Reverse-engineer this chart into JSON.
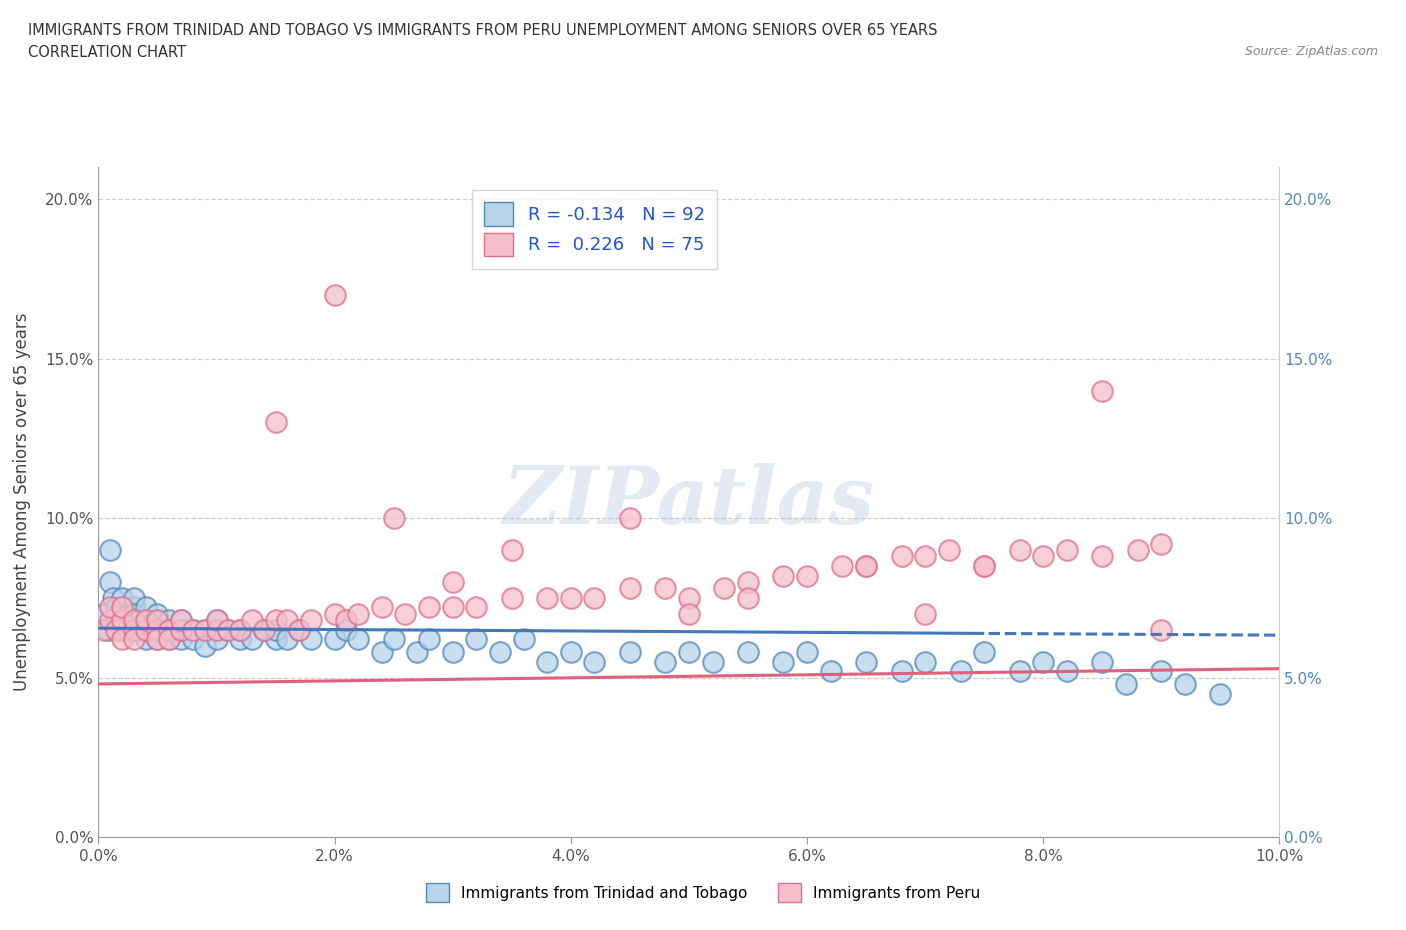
{
  "title_line1": "IMMIGRANTS FROM TRINIDAD AND TOBAGO VS IMMIGRANTS FROM PERU UNEMPLOYMENT AMONG SENIORS OVER 65 YEARS",
  "title_line2": "CORRELATION CHART",
  "source_text": "Source: ZipAtlas.com",
  "ylabel": "Unemployment Among Seniors over 65 years",
  "xlim": [
    0.0,
    0.1
  ],
  "ylim": [
    0.0,
    0.21
  ],
  "xticks": [
    0.0,
    0.02,
    0.04,
    0.06,
    0.08,
    0.1
  ],
  "xtick_labels": [
    "0.0%",
    "2.0%",
    "4.0%",
    "6.0%",
    "8.0%",
    "10.0%"
  ],
  "yticks": [
    0.0,
    0.05,
    0.1,
    0.15,
    0.2
  ],
  "ytick_labels": [
    "0.0%",
    "5.0%",
    "10.0%",
    "15.0%",
    "20.0%"
  ],
  "color_blue_fill": "#b8d4ea",
  "color_blue_edge": "#5588bb",
  "color_pink_fill": "#f5bfcc",
  "color_pink_edge": "#e07090",
  "color_blue_line": "#4477bb",
  "color_pink_line": "#e06080",
  "tt_x": [
    0.0005,
    0.0008,
    0.001,
    0.001,
    0.0012,
    0.0015,
    0.0015,
    0.002,
    0.002,
    0.002,
    0.002,
    0.0025,
    0.0025,
    0.003,
    0.003,
    0.003,
    0.003,
    0.003,
    0.003,
    0.0035,
    0.0035,
    0.004,
    0.004,
    0.004,
    0.004,
    0.004,
    0.005,
    0.005,
    0.005,
    0.005,
    0.005,
    0.006,
    0.006,
    0.006,
    0.006,
    0.007,
    0.007,
    0.007,
    0.007,
    0.008,
    0.008,
    0.009,
    0.009,
    0.01,
    0.01,
    0.01,
    0.011,
    0.012,
    0.012,
    0.013,
    0.014,
    0.015,
    0.015,
    0.016,
    0.017,
    0.018,
    0.02,
    0.021,
    0.022,
    0.024,
    0.025,
    0.027,
    0.028,
    0.03,
    0.032,
    0.034,
    0.036,
    0.038,
    0.04,
    0.042,
    0.045,
    0.048,
    0.05,
    0.052,
    0.055,
    0.058,
    0.06,
    0.062,
    0.065,
    0.068,
    0.07,
    0.073,
    0.075,
    0.078,
    0.08,
    0.082,
    0.085,
    0.087,
    0.09,
    0.092,
    0.095
  ],
  "tt_y": [
    0.07,
    0.065,
    0.08,
    0.09,
    0.075,
    0.068,
    0.072,
    0.065,
    0.068,
    0.072,
    0.075,
    0.065,
    0.07,
    0.065,
    0.068,
    0.072,
    0.075,
    0.065,
    0.07,
    0.065,
    0.068,
    0.065,
    0.068,
    0.072,
    0.062,
    0.065,
    0.065,
    0.062,
    0.065,
    0.068,
    0.07,
    0.065,
    0.062,
    0.065,
    0.068,
    0.065,
    0.062,
    0.065,
    0.068,
    0.065,
    0.062,
    0.065,
    0.06,
    0.065,
    0.062,
    0.068,
    0.065,
    0.062,
    0.065,
    0.062,
    0.065,
    0.062,
    0.065,
    0.062,
    0.065,
    0.062,
    0.062,
    0.065,
    0.062,
    0.058,
    0.062,
    0.058,
    0.062,
    0.058,
    0.062,
    0.058,
    0.062,
    0.055,
    0.058,
    0.055,
    0.058,
    0.055,
    0.058,
    0.055,
    0.058,
    0.055,
    0.058,
    0.052,
    0.055,
    0.052,
    0.055,
    0.052,
    0.058,
    0.052,
    0.055,
    0.052,
    0.055,
    0.048,
    0.052,
    0.048,
    0.045
  ],
  "peru_x": [
    0.0005,
    0.001,
    0.001,
    0.0015,
    0.002,
    0.002,
    0.002,
    0.003,
    0.003,
    0.003,
    0.004,
    0.004,
    0.005,
    0.005,
    0.005,
    0.006,
    0.006,
    0.007,
    0.007,
    0.008,
    0.009,
    0.01,
    0.01,
    0.011,
    0.012,
    0.013,
    0.014,
    0.015,
    0.016,
    0.017,
    0.018,
    0.02,
    0.021,
    0.022,
    0.024,
    0.026,
    0.028,
    0.03,
    0.032,
    0.035,
    0.038,
    0.04,
    0.042,
    0.045,
    0.048,
    0.05,
    0.053,
    0.055,
    0.058,
    0.06,
    0.063,
    0.065,
    0.068,
    0.07,
    0.072,
    0.075,
    0.078,
    0.08,
    0.082,
    0.085,
    0.088,
    0.09,
    0.025,
    0.015,
    0.035,
    0.045,
    0.055,
    0.065,
    0.075,
    0.085,
    0.03,
    0.05,
    0.07,
    0.09,
    0.02
  ],
  "peru_y": [
    0.065,
    0.068,
    0.072,
    0.065,
    0.068,
    0.072,
    0.062,
    0.065,
    0.068,
    0.062,
    0.065,
    0.068,
    0.065,
    0.068,
    0.062,
    0.065,
    0.062,
    0.065,
    0.068,
    0.065,
    0.065,
    0.065,
    0.068,
    0.065,
    0.065,
    0.068,
    0.065,
    0.068,
    0.068,
    0.065,
    0.068,
    0.07,
    0.068,
    0.07,
    0.072,
    0.07,
    0.072,
    0.072,
    0.072,
    0.075,
    0.075,
    0.075,
    0.075,
    0.078,
    0.078,
    0.075,
    0.078,
    0.08,
    0.082,
    0.082,
    0.085,
    0.085,
    0.088,
    0.088,
    0.09,
    0.085,
    0.09,
    0.088,
    0.09,
    0.088,
    0.09,
    0.092,
    0.1,
    0.13,
    0.09,
    0.1,
    0.075,
    0.085,
    0.085,
    0.14,
    0.08,
    0.07,
    0.07,
    0.065,
    0.17
  ]
}
